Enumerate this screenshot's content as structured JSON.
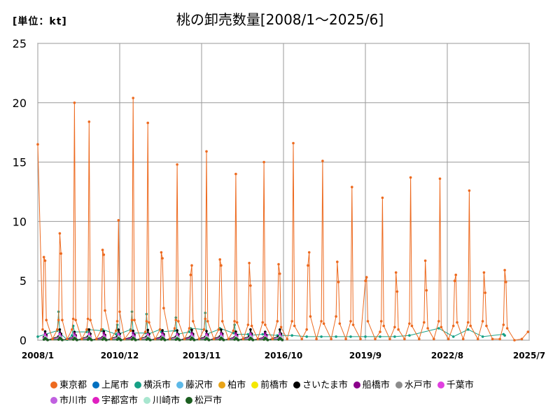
{
  "unit_label": "[単位：kt]",
  "chart_data": {
    "type": "line",
    "title": "桃の卸売数量[2008/1～2025/6]",
    "xlabel": "",
    "ylabel": "",
    "ylim": [
      0,
      25
    ],
    "yticks": [
      0,
      5,
      10,
      15,
      20,
      25
    ],
    "xticks": [
      "2008/1",
      "2010/12",
      "2013/11",
      "2016/10",
      "2019/9",
      "2022/8",
      "2025/7"
    ],
    "x_start": "2008/1",
    "x_end": "2025/7",
    "grid": true,
    "legend_position": "bottom",
    "series": [
      {
        "name": "東京都",
        "color": "#ED6A1F",
        "points": [
          [
            0,
            16.5
          ],
          [
            4,
            0.9
          ],
          [
            5,
            7.0
          ],
          [
            6,
            6.7
          ],
          [
            7,
            1.7
          ],
          [
            12,
            0.1
          ],
          [
            16,
            0.9
          ],
          [
            17,
            1.7
          ],
          [
            18,
            9.0
          ],
          [
            19,
            7.3
          ],
          [
            20,
            1.7
          ],
          [
            24,
            0.1
          ],
          [
            28,
            0.9
          ],
          [
            29,
            1.8
          ],
          [
            30,
            20.0
          ],
          [
            31,
            1.7
          ],
          [
            36,
            0.1
          ],
          [
            40,
            0.9
          ],
          [
            41,
            1.8
          ],
          [
            42,
            18.4
          ],
          [
            43,
            1.7
          ],
          [
            48,
            0.1
          ],
          [
            52,
            0.9
          ],
          [
            53,
            7.6
          ],
          [
            54,
            7.2
          ],
          [
            55,
            2.5
          ],
          [
            60,
            0.1
          ],
          [
            64,
            0.8
          ],
          [
            65,
            1.6
          ],
          [
            66,
            10.1
          ],
          [
            67,
            2.4
          ],
          [
            71,
            0.1
          ],
          [
            76,
            0.8
          ],
          [
            77,
            1.7
          ],
          [
            78,
            20.4
          ],
          [
            79,
            1.7
          ],
          [
            84,
            0.1
          ],
          [
            88,
            0.7
          ],
          [
            89,
            1.6
          ],
          [
            90,
            18.3
          ],
          [
            91,
            1.5
          ],
          [
            96,
            0.1
          ],
          [
            100,
            0.9
          ],
          [
            101,
            7.4
          ],
          [
            102,
            6.9
          ],
          [
            103,
            2.7
          ],
          [
            108,
            0.1
          ],
          [
            112,
            1.0
          ],
          [
            113,
            1.7
          ],
          [
            114,
            14.8
          ],
          [
            115,
            1.6
          ],
          [
            120,
            0.1
          ],
          [
            124,
            1.0
          ],
          [
            125,
            5.5
          ],
          [
            126,
            6.3
          ],
          [
            127,
            1.6
          ],
          [
            132,
            0.1
          ],
          [
            136,
            0.9
          ],
          [
            137,
            1.8
          ],
          [
            138,
            15.9
          ],
          [
            139,
            1.6
          ],
          [
            144,
            0.1
          ],
          [
            148,
            0.9
          ],
          [
            149,
            6.8
          ],
          [
            150,
            6.3
          ],
          [
            151,
            1.6
          ],
          [
            156,
            0.1
          ],
          [
            160,
            0.8
          ],
          [
            161,
            1.6
          ],
          [
            162,
            14.0
          ],
          [
            163,
            1.5
          ],
          [
            168,
            0.1
          ],
          [
            172,
            1.3
          ],
          [
            173,
            6.5
          ],
          [
            174,
            4.6
          ],
          [
            175,
            1.2
          ],
          [
            180,
            0.1
          ],
          [
            184,
            1.5
          ],
          [
            185,
            15.0
          ],
          [
            186,
            1.3
          ],
          [
            192,
            0.1
          ],
          [
            196,
            1.6
          ],
          [
            197,
            6.4
          ],
          [
            198,
            5.6
          ],
          [
            199,
            1.1
          ],
          [
            204,
            0.1
          ],
          [
            208,
            1.6
          ],
          [
            209,
            16.6
          ],
          [
            210,
            1.2
          ],
          [
            216,
            0.1
          ],
          [
            220,
            0.9
          ],
          [
            221,
            6.3
          ],
          [
            222,
            7.4
          ],
          [
            223,
            2.0
          ],
          [
            228,
            0.1
          ],
          [
            232,
            1.6
          ],
          [
            233,
            15.1
          ],
          [
            234,
            1.4
          ],
          [
            240,
            0.1
          ],
          [
            244,
            2.0
          ],
          [
            245,
            6.6
          ],
          [
            246,
            4.9
          ],
          [
            247,
            1.4
          ],
          [
            252,
            0.1
          ],
          [
            256,
            1.6
          ],
          [
            257,
            12.9
          ],
          [
            258,
            1.3
          ],
          [
            264,
            0.1
          ],
          [
            268,
            5.0
          ],
          [
            269,
            5.3
          ],
          [
            270,
            1.6
          ],
          [
            276,
            0.1
          ],
          [
            280,
            0.7
          ],
          [
            281,
            1.6
          ],
          [
            282,
            12.0
          ],
          [
            283,
            1.2
          ],
          [
            288,
            0.1
          ],
          [
            292,
            1.1
          ],
          [
            293,
            5.7
          ],
          [
            294,
            4.1
          ],
          [
            295,
            0.9
          ],
          [
            300,
            0.1
          ],
          [
            304,
            1.4
          ],
          [
            305,
            13.7
          ],
          [
            306,
            1.2
          ],
          [
            312,
            0.1
          ],
          [
            316,
            1.5
          ],
          [
            317,
            6.7
          ],
          [
            318,
            4.2
          ],
          [
            319,
            1.0
          ],
          [
            324,
            0.1
          ],
          [
            328,
            1.6
          ],
          [
            329,
            13.6
          ],
          [
            330,
            1.1
          ],
          [
            336,
            0.1
          ],
          [
            340,
            1.2
          ],
          [
            341,
            5.0
          ],
          [
            342,
            5.5
          ],
          [
            343,
            1.5
          ],
          [
            348,
            0.1
          ],
          [
            352,
            1.5
          ],
          [
            353,
            12.6
          ],
          [
            354,
            1.2
          ],
          [
            360,
            0.1
          ],
          [
            364,
            1.6
          ],
          [
            365,
            5.7
          ],
          [
            366,
            4.0
          ],
          [
            367,
            1.2
          ],
          [
            372,
            0.1
          ],
          [
            378,
            0.1
          ],
          [
            381,
            1.3
          ],
          [
            382,
            5.9
          ],
          [
            383,
            4.9
          ],
          [
            384,
            1.0
          ],
          [
            390,
            0.0
          ],
          [
            396,
            0.1
          ],
          [
            401,
            0.7
          ]
        ]
      },
      {
        "name": "上尾市",
        "color": "#0070C0",
        "peak": 0.2
      },
      {
        "name": "横浜市",
        "color": "#16A085",
        "points": [
          [
            0,
            0.3
          ],
          [
            16,
            0.8
          ],
          [
            17,
            2.4
          ],
          [
            18,
            0.6
          ],
          [
            24,
            0.05
          ],
          [
            28,
            0.4
          ],
          [
            29,
            1.2
          ],
          [
            30,
            0.7
          ],
          [
            40,
            0.7
          ],
          [
            41,
            0.9
          ],
          [
            52,
            0.8
          ],
          [
            53,
            0.9
          ],
          [
            64,
            0.5
          ],
          [
            65,
            1.3
          ],
          [
            66,
            0.5
          ],
          [
            76,
            0.9
          ],
          [
            77,
            2.4
          ],
          [
            78,
            0.6
          ],
          [
            88,
            0.6
          ],
          [
            89,
            2.2
          ],
          [
            90,
            0.5
          ],
          [
            100,
            0.9
          ],
          [
            101,
            0.7
          ],
          [
            112,
            0.8
          ],
          [
            113,
            1.9
          ],
          [
            114,
            0.5
          ],
          [
            124,
            0.7
          ],
          [
            125,
            1.0
          ],
          [
            136,
            0.9
          ],
          [
            137,
            2.3
          ],
          [
            138,
            0.5
          ],
          [
            148,
            0.9
          ],
          [
            149,
            1.0
          ],
          [
            160,
            0.6
          ],
          [
            161,
            1.3
          ],
          [
            162,
            0.5
          ],
          [
            172,
            0.5
          ],
          [
            173,
            0.4
          ],
          [
            184,
            0.5
          ],
          [
            196,
            0.4
          ],
          [
            208,
            0.4
          ],
          [
            220,
            0.3
          ],
          [
            232,
            0.3
          ],
          [
            244,
            0.3
          ],
          [
            256,
            0.3
          ],
          [
            268,
            0.3
          ],
          [
            280,
            0.3
          ],
          [
            292,
            0.3
          ],
          [
            304,
            0.4
          ],
          [
            328,
            1.0
          ],
          [
            340,
            0.3
          ],
          [
            352,
            0.9
          ],
          [
            364,
            0.3
          ],
          [
            381,
            0.5
          ],
          [
            382,
            0.4
          ]
        ]
      },
      {
        "name": "藤沢市",
        "color": "#5DB9E8",
        "peak": 0.4
      },
      {
        "name": "柏市",
        "color": "#E8A317",
        "peak": 0.3
      },
      {
        "name": "前橋市",
        "color": "#F4E800",
        "peak": 0.2
      },
      {
        "name": "さいたま市",
        "color": "#000000",
        "peak": 0.9
      },
      {
        "name": "船橋市",
        "color": "#8B008B",
        "peak": 0.6
      },
      {
        "name": "水戸市",
        "color": "#8C8C8C",
        "peak": 0.2
      },
      {
        "name": "千葉市",
        "color": "#E040E0",
        "peak": 0.5
      },
      {
        "name": "市川市",
        "color": "#C060E0",
        "peak": 0.4
      },
      {
        "name": "宇都宮市",
        "color": "#E020C0",
        "peak": 0.3
      },
      {
        "name": "川崎市",
        "color": "#A8E6CF",
        "peak": 0.3
      },
      {
        "name": "松戸市",
        "color": "#1B5E20",
        "peak": 0.2
      }
    ]
  }
}
